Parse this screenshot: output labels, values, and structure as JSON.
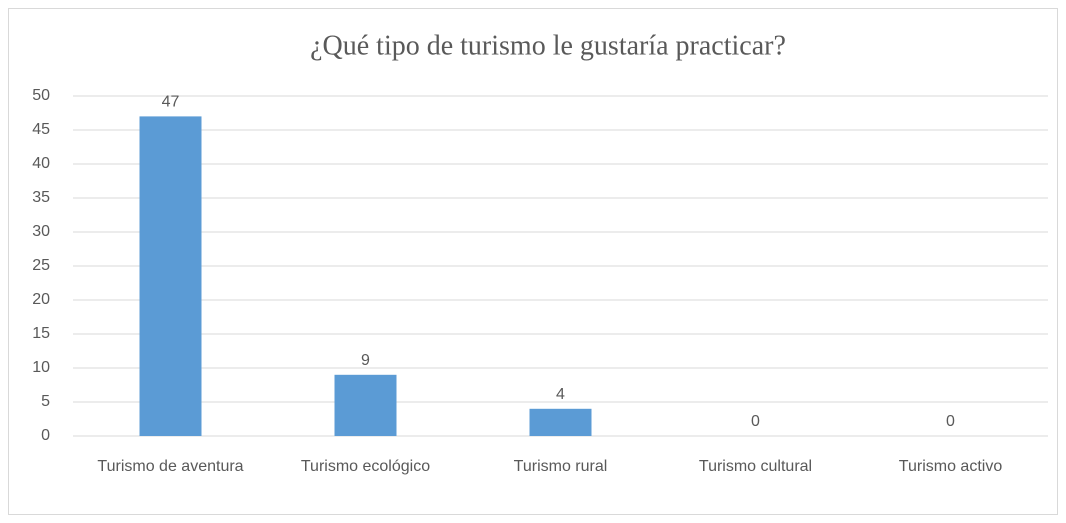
{
  "chart_data": {
    "type": "bar",
    "title": "¿Qué tipo de turismo le gustaría practicar?",
    "categories": [
      "Turismo de aventura",
      "Turismo ecológico",
      "Turismo rural",
      "Turismo cultural",
      "Turismo activo"
    ],
    "values": [
      47,
      9,
      4,
      0,
      0
    ],
    "color": "#5b9bd5",
    "ylim": [
      0,
      50
    ],
    "yticks": [
      0,
      5,
      10,
      15,
      20,
      25,
      30,
      35,
      40,
      45,
      50
    ],
    "grid": true
  }
}
